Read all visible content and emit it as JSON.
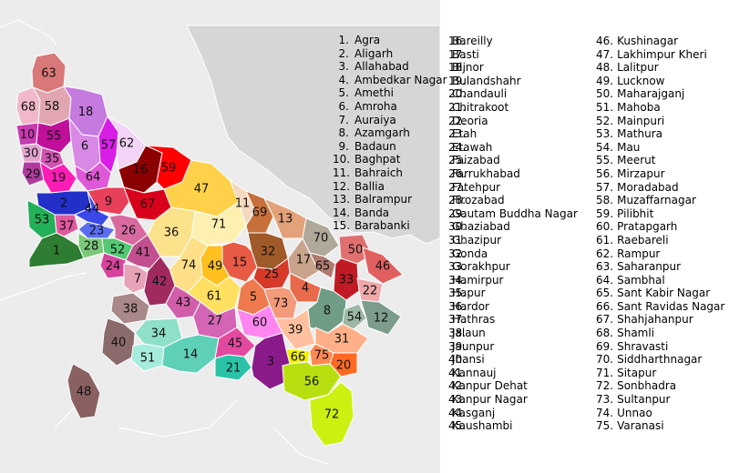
{
  "districts": [
    {
      "number": "1.",
      "name": "Agra"
    },
    {
      "number": "2.",
      "name": "Aligarh"
    },
    {
      "number": "3.",
      "name": "Allahabad"
    },
    {
      "number": "4.",
      "name": "Ambedkar Nagar"
    },
    {
      "number": "5.",
      "name": "Amethi"
    },
    {
      "number": "6.",
      "name": "Amroha"
    },
    {
      "number": "7.",
      "name": "Auraiya"
    },
    {
      "number": "8.",
      "name": "Azamgarh"
    },
    {
      "number": "9.",
      "name": "Badaun"
    },
    {
      "number": "10.",
      "name": "Baghpat"
    },
    {
      "number": "11.",
      "name": "Bahraich"
    },
    {
      "number": "12.",
      "name": "Ballia"
    },
    {
      "number": "13.",
      "name": "Balrampur"
    },
    {
      "number": "14.",
      "name": "Banda"
    },
    {
      "number": "15.",
      "name": "Barabanki"
    },
    {
      "number": "16.",
      "name": "Bareilly"
    },
    {
      "number": "17.",
      "name": "Basti"
    },
    {
      "number": "18.",
      "name": "Bijnor"
    },
    {
      "number": "19.",
      "name": "Bulandshahr"
    },
    {
      "number": "20.",
      "name": "Chandauli"
    },
    {
      "number": "21.",
      "name": "Chitrakoot"
    },
    {
      "number": "22.",
      "name": "Deoria"
    },
    {
      "number": "23.",
      "name": "Etah"
    },
    {
      "number": "24.",
      "name": "Etawah"
    },
    {
      "number": "25.",
      "name": "Faizabad"
    },
    {
      "number": "26.",
      "name": "Farrukhabad"
    },
    {
      "number": "27.",
      "name": "Fatehpur"
    },
    {
      "number": "28.",
      "name": "Firozabad"
    },
    {
      "number": "29.",
      "name": "Gautam Buddha Nagar"
    },
    {
      "number": "30.",
      "name": "Ghaziabad"
    },
    {
      "number": "31.",
      "name": "Ghazipur"
    },
    {
      "number": "32.",
      "name": "Gonda"
    },
    {
      "number": "33.",
      "name": "Gorakhpur"
    },
    {
      "number": "34.",
      "name": "Hamirpur"
    },
    {
      "number": "35.",
      "name": "Hapur"
    },
    {
      "number": "36.",
      "name": "Hardor"
    },
    {
      "number": "37.",
      "name": "Hathras"
    },
    {
      "number": "38.",
      "name": "Jalaun"
    },
    {
      "number": "39.",
      "name": "Jaunpur"
    },
    {
      "number": "40.",
      "name": "Jhansi"
    },
    {
      "number": "41.",
      "name": "Kannauj"
    },
    {
      "number": "42.",
      "name": "Kanpur Dehat"
    },
    {
      "number": "43.",
      "name": "Kanpur Nagar"
    },
    {
      "number": "44.",
      "name": "Kasganj"
    },
    {
      "number": "45.",
      "name": "Kaushambi"
    },
    {
      "number": "46.",
      "name": "Kushinagar"
    },
    {
      "number": "47.",
      "name": "Lakhimpur Kheri"
    },
    {
      "number": "48.",
      "name": "Lalitpur"
    },
    {
      "number": "49.",
      "name": "Lucknow"
    },
    {
      "number": "50.",
      "name": "Maharajganj"
    },
    {
      "number": "51.",
      "name": "Mahoba"
    },
    {
      "number": "52.",
      "name": "Mainpuri"
    },
    {
      "number": "53.",
      "name": "Mathura"
    },
    {
      "number": "54.",
      "name": "Mau"
    },
    {
      "number": "55.",
      "name": "Meerut"
    },
    {
      "number": "56.",
      "name": "Mirzapur"
    },
    {
      "number": "57.",
      "name": "Moradabad"
    },
    {
      "number": "58.",
      "name": "Muzaffarnagar"
    },
    {
      "number": "59.",
      "name": "Pilibhit"
    },
    {
      "number": "60.",
      "name": "Pratapgarh"
    },
    {
      "number": "61.",
      "name": "Raebareli"
    },
    {
      "number": "62.",
      "name": "Rampur"
    },
    {
      "number": "63.",
      "name": "Saharanpur"
    },
    {
      "number": "64.",
      "name": "Sambhal"
    },
    {
      "number": "65.",
      "name": "Sant Kabir Nagar"
    },
    {
      "number": "66.",
      "name": "Sant Ravidas Nagar"
    },
    {
      "number": "67.",
      "name": "Shahjahanpur"
    },
    {
      "number": "68.",
      "name": "Shamli"
    },
    {
      "number": "69.",
      "name": "Shravasti"
    },
    {
      "number": "70.",
      "name": "Siddharthnagar"
    },
    {
      "number": "71.",
      "name": "Sitapur"
    },
    {
      "number": "72.",
      "name": "Sonbhadra"
    },
    {
      "number": "73.",
      "name": "Sultanpur"
    },
    {
      "number": "74.",
      "name": "Unnao"
    },
    {
      "number": "75.",
      "name": "Varanasi"
    }
  ],
  "map_labels": [
    "1",
    "2",
    "3",
    "4",
    "5",
    "6",
    "7",
    "8",
    "9",
    "10",
    "11",
    "12",
    "13",
    "14",
    "15",
    "16",
    "17",
    "18",
    "19",
    "20",
    "21",
    "22",
    "23",
    "24",
    "25",
    "26",
    "27",
    "28",
    "29",
    "30",
    "31",
    "32",
    "33",
    "34",
    "35",
    "36",
    "37",
    "38",
    "39",
    "40",
    "41",
    "42",
    "43",
    "44",
    "45",
    "46",
    "47",
    "48",
    "49",
    "50",
    "51",
    "52",
    "53",
    "54",
    "55",
    "56",
    "57",
    "58",
    "59",
    "60",
    "61",
    "62",
    "63",
    "64",
    "65",
    "66",
    "67",
    "68",
    "69",
    "70",
    "71",
    "72",
    "73",
    "74",
    "75"
  ],
  "district_colors": {
    "1": "#2e7d32",
    "2": "#2230c8",
    "3": "#8a1a8a",
    "4": "#e86a4a",
    "5": "#ee7a4e",
    "6": "#d889e6",
    "7": "#e6a3b8",
    "8": "#6f9c85",
    "9": "#e8405a",
    "10": "#c83ab0",
    "11": "#f5d8c0",
    "12": "#7c9c8c",
    "13": "#e3a27a",
    "14": "#5fd0b8",
    "15": "#e85a44",
    "16": "#8b0000",
    "17": "#c9a38c",
    "18": "#c57ae0",
    "19": "#ff1cb6",
    "20": "#ff6a22",
    "21": "#2bc3a7",
    "22": "#f0a8a8",
    "23": "#5a6ef0",
    "24": "#d8449c",
    "25": "#d83a2a",
    "26": "#d86aa0",
    "27": "#d465b6",
    "28": "#7ac878",
    "29": "#b03aa0",
    "30": "#e2a4ce",
    "31": "#ffb088",
    "32": "#a05a2a",
    "33": "#c21a24",
    "34": "#8ee0c8",
    "35": "#d254b2",
    "36": "#fce28a",
    "37": "#e0589e",
    "38": "#a88888",
    "39": "#ffc0a0",
    "40": "#8a6a6a",
    "41": "#c25090",
    "42": "#a02a60",
    "43": "#d05ea8",
    "44": "#3a48e8",
    "45": "#e24aa0",
    "46": "#e06060",
    "47": "#ffd04a",
    "48": "#8a6060",
    "49": "#ffc020",
    "50": "#e07070",
    "51": "#a6ecdc",
    "52": "#56c874",
    "53": "#22b058",
    "54": "#9cb8a4",
    "55": "#c0109a",
    "56": "#b8e010",
    "57": "#d81ee6",
    "58": "#e2a6b0",
    "59": "#ff0000",
    "60": "#ff86f0",
    "61": "#ffe060",
    "62": "#f2d4f6",
    "63": "#d87878",
    "64": "#e058d8",
    "65": "#b07a70",
    "66": "#f0f000",
    "67": "#d8001a",
    "68": "#f0b8c8",
    "69": "#c8703a",
    "70": "#b0a898",
    "71": "#fdf0b0",
    "72": "#ccf010",
    "73": "#f29a7a",
    "74": "#ffe088",
    "75": "#ff8850"
  }
}
